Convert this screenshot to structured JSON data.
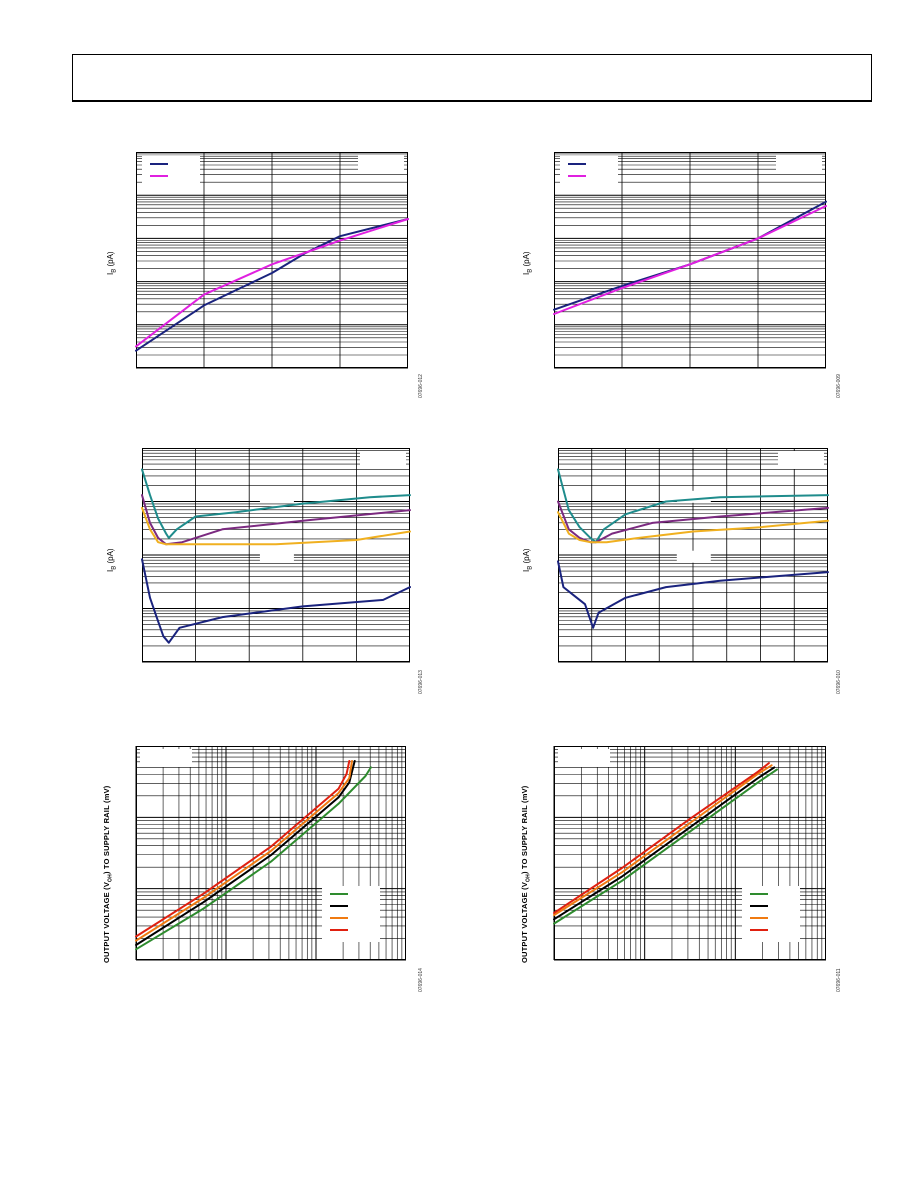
{
  "page": {
    "header": ""
  },
  "charts": [
    {
      "id": "c1",
      "ylabel": "IB (pA)",
      "ylabel_sub": "B",
      "fig_id": "07696-012",
      "log_x": false,
      "x_divs": 4,
      "y_decades": 5,
      "series": [
        {
          "color": "#1a237e",
          "points": [
            [
              0,
              0.08
            ],
            [
              0.25,
              0.29
            ],
            [
              0.5,
              0.44
            ],
            [
              0.62,
              0.53
            ],
            [
              0.75,
              0.61
            ],
            [
              1,
              0.69
            ]
          ]
        },
        {
          "color": "#e020e0",
          "points": [
            [
              0,
              0.1
            ],
            [
              0.25,
              0.34
            ],
            [
              0.5,
              0.48
            ],
            [
              0.75,
              0.59
            ],
            [
              1,
              0.69
            ]
          ]
        }
      ],
      "legend": {
        "corner": "top-left",
        "colors": [
          "#1a237e",
          "#e020e0"
        ]
      },
      "boxes": [
        "top-right"
      ]
    },
    {
      "id": "c2",
      "ylabel": "IB (pA)",
      "ylabel_sub": "B",
      "fig_id": "07696-009",
      "log_x": false,
      "x_divs": 4,
      "y_decades": 5,
      "series": [
        {
          "color": "#1a237e",
          "points": [
            [
              0,
              0.27
            ],
            [
              0.25,
              0.38
            ],
            [
              0.5,
              0.48
            ],
            [
              0.75,
              0.6
            ],
            [
              1,
              0.77
            ]
          ]
        },
        {
          "color": "#e020e0",
          "points": [
            [
              0,
              0.25
            ],
            [
              0.25,
              0.37
            ],
            [
              0.5,
              0.48
            ],
            [
              0.75,
              0.6
            ],
            [
              1,
              0.75
            ]
          ]
        }
      ],
      "legend": {
        "corner": "top-left",
        "colors": [
          "#1a237e",
          "#e020e0"
        ]
      },
      "boxes": [
        "top-right"
      ]
    },
    {
      "id": "c3",
      "ylabel": "IB (pA)",
      "ylabel_sub": "B",
      "fig_id": "07696-013",
      "log_x": false,
      "x_divs": 5,
      "y_decades": 4,
      "series": [
        {
          "color": "#1f8c8c",
          "points": [
            [
              0,
              0.9
            ],
            [
              0.03,
              0.78
            ],
            [
              0.06,
              0.67
            ],
            [
              0.09,
              0.6
            ],
            [
              0.1,
              0.58
            ],
            [
              0.13,
              0.62
            ],
            [
              0.2,
              0.68
            ],
            [
              0.35,
              0.7
            ],
            [
              0.6,
              0.74
            ],
            [
              0.85,
              0.77
            ],
            [
              1,
              0.78
            ]
          ]
        },
        {
          "color": "#7b2a80",
          "points": [
            [
              0,
              0.78
            ],
            [
              0.03,
              0.65
            ],
            [
              0.06,
              0.58
            ],
            [
              0.09,
              0.55
            ],
            [
              0.15,
              0.56
            ],
            [
              0.3,
              0.62
            ],
            [
              0.6,
              0.66
            ],
            [
              1,
              0.71
            ]
          ]
        },
        {
          "color": "#f0b020",
          "points": [
            [
              0,
              0.72
            ],
            [
              0.03,
              0.62
            ],
            [
              0.06,
              0.56
            ],
            [
              0.09,
              0.55
            ],
            [
              0.2,
              0.55
            ],
            [
              0.5,
              0.55
            ],
            [
              0.8,
              0.57
            ],
            [
              1,
              0.61
            ]
          ]
        },
        {
          "color": "#1a237e",
          "points": [
            [
              0,
              0.48
            ],
            [
              0.03,
              0.3
            ],
            [
              0.06,
              0.19
            ],
            [
              0.08,
              0.12
            ],
            [
              0.1,
              0.09
            ],
            [
              0.14,
              0.16
            ],
            [
              0.3,
              0.21
            ],
            [
              0.6,
              0.26
            ],
            [
              0.9,
              0.29
            ],
            [
              1,
              0.35
            ]
          ]
        }
      ],
      "boxes": [
        "top-right",
        "mid1",
        "mid2"
      ]
    },
    {
      "id": "c4",
      "ylabel": "IB (pA)",
      "ylabel_sub": "B",
      "fig_id": "07696-010",
      "log_x": false,
      "x_divs": 8,
      "y_decades": 4,
      "series": [
        {
          "color": "#1f8c8c",
          "points": [
            [
              0,
              0.9
            ],
            [
              0.04,
              0.71
            ],
            [
              0.08,
              0.63
            ],
            [
              0.12,
              0.58
            ],
            [
              0.14,
              0.56
            ],
            [
              0.17,
              0.62
            ],
            [
              0.25,
              0.69
            ],
            [
              0.4,
              0.75
            ],
            [
              0.6,
              0.77
            ],
            [
              1,
              0.78
            ]
          ]
        },
        {
          "color": "#7b2a80",
          "points": [
            [
              0,
              0.75
            ],
            [
              0.04,
              0.62
            ],
            [
              0.08,
              0.58
            ],
            [
              0.12,
              0.56
            ],
            [
              0.14,
              0.56
            ],
            [
              0.2,
              0.6
            ],
            [
              0.35,
              0.65
            ],
            [
              0.6,
              0.68
            ],
            [
              1,
              0.72
            ]
          ]
        },
        {
          "color": "#f0b020",
          "points": [
            [
              0,
              0.7
            ],
            [
              0.04,
              0.6
            ],
            [
              0.08,
              0.57
            ],
            [
              0.12,
              0.56
            ],
            [
              0.18,
              0.56
            ],
            [
              0.3,
              0.58
            ],
            [
              0.5,
              0.61
            ],
            [
              0.75,
              0.63
            ],
            [
              1,
              0.66
            ]
          ]
        },
        {
          "color": "#1a237e",
          "points": [
            [
              0,
              0.47
            ],
            [
              0.02,
              0.35
            ],
            [
              0.06,
              0.31
            ],
            [
              0.1,
              0.27
            ],
            [
              0.13,
              0.16
            ],
            [
              0.15,
              0.23
            ],
            [
              0.25,
              0.3
            ],
            [
              0.4,
              0.35
            ],
            [
              0.6,
              0.38
            ],
            [
              1,
              0.42
            ]
          ]
        }
      ],
      "boxes": [
        "top-right",
        "mid1",
        "mid2"
      ]
    },
    {
      "id": "c5",
      "ylabel": "OUTPUT VOLTAGE (VOH) TO SUPPLY RAIL (mV)",
      "ylabel_sub": "",
      "fig_id": "07696-014",
      "log_x": true,
      "x_decades": 3,
      "y_decades": 3,
      "series": [
        {
          "color": "#2e8b2e",
          "points": [
            [
              0,
              0.05
            ],
            [
              0.25,
              0.24
            ],
            [
              0.5,
              0.46
            ],
            [
              0.75,
              0.73
            ],
            [
              0.85,
              0.86
            ],
            [
              0.87,
              0.9
            ]
          ]
        },
        {
          "color": "#000000",
          "points": [
            [
              0,
              0.07
            ],
            [
              0.25,
              0.27
            ],
            [
              0.5,
              0.49
            ],
            [
              0.75,
              0.76
            ],
            [
              0.79,
              0.83
            ],
            [
              0.81,
              0.93
            ]
          ]
        },
        {
          "color": "#f07a10",
          "points": [
            [
              0,
              0.09
            ],
            [
              0.25,
              0.29
            ],
            [
              0.5,
              0.51
            ],
            [
              0.75,
              0.78
            ],
            [
              0.79,
              0.85
            ],
            [
              0.8,
              0.93
            ]
          ]
        },
        {
          "color": "#e02010",
          "points": [
            [
              0,
              0.11
            ],
            [
              0.25,
              0.31
            ],
            [
              0.5,
              0.53
            ],
            [
              0.75,
              0.8
            ],
            [
              0.78,
              0.87
            ],
            [
              0.79,
              0.93
            ]
          ]
        }
      ],
      "legend": {
        "corner": "bottom-right",
        "colors": [
          "#2e8b2e",
          "#000000",
          "#f07a10",
          "#e02010"
        ]
      },
      "boxes": [
        "top-left"
      ]
    },
    {
      "id": "c6",
      "ylabel": "OUTPUT VOLTAGE (VOH) TO SUPPLY RAIL (mV)",
      "ylabel_sub": "",
      "fig_id": "07696-011",
      "log_x": true,
      "x_decades": 3,
      "y_decades": 3,
      "series": [
        {
          "color": "#2e8b2e",
          "points": [
            [
              0,
              0.17
            ],
            [
              0.25,
              0.37
            ],
            [
              0.5,
              0.6
            ],
            [
              0.75,
              0.83
            ],
            [
              0.82,
              0.89
            ]
          ]
        },
        {
          "color": "#000000",
          "points": [
            [
              0,
              0.19
            ],
            [
              0.25,
              0.39
            ],
            [
              0.5,
              0.62
            ],
            [
              0.75,
              0.85
            ],
            [
              0.81,
              0.9
            ]
          ]
        },
        {
          "color": "#f07a10",
          "points": [
            [
              0,
              0.21
            ],
            [
              0.25,
              0.41
            ],
            [
              0.5,
              0.64
            ],
            [
              0.75,
              0.87
            ],
            [
              0.8,
              0.91
            ]
          ]
        },
        {
          "color": "#e02010",
          "points": [
            [
              0,
              0.22
            ],
            [
              0.25,
              0.43
            ],
            [
              0.5,
              0.66
            ],
            [
              0.75,
              0.88
            ],
            [
              0.79,
              0.92
            ]
          ]
        }
      ],
      "legend": {
        "corner": "bottom-right",
        "colors": [
          "#2e8b2e",
          "#000000",
          "#f07a10",
          "#e02010"
        ]
      },
      "boxes": [
        "top-left"
      ]
    }
  ],
  "chart_data": [
    {
      "type": "line",
      "title": "",
      "ylabel": "IB (pA)",
      "y_scale": "log",
      "series": [
        {
          "color": "#1a237e",
          "values": [
            0.08,
            0.29,
            0.44,
            0.53,
            0.61,
            0.69
          ]
        },
        {
          "color": "#e020e0",
          "values": [
            0.1,
            0.34,
            0.48,
            0.59,
            0.69
          ]
        }
      ]
    },
    {
      "type": "line",
      "title": "",
      "ylabel": "IB (pA)",
      "y_scale": "log",
      "series": [
        {
          "color": "#1a237e",
          "values": [
            0.27,
            0.38,
            0.48,
            0.6,
            0.77
          ]
        },
        {
          "color": "#e020e0",
          "values": [
            0.25,
            0.37,
            0.48,
            0.6,
            0.75
          ]
        }
      ]
    },
    {
      "type": "line",
      "title": "",
      "ylabel": "IB (pA)",
      "y_scale": "log",
      "series_count": 4
    },
    {
      "type": "line",
      "title": "",
      "ylabel": "IB (pA)",
      "y_scale": "log",
      "series_count": 4
    },
    {
      "type": "line",
      "title": "",
      "ylabel": "OUTPUT VOLTAGE (VOH) TO SUPPLY RAIL (mV)",
      "x_scale": "log",
      "y_scale": "log",
      "series_count": 4
    },
    {
      "type": "line",
      "title": "",
      "ylabel": "OUTPUT VOLTAGE (VOH) TO SUPPLY RAIL (mV)",
      "x_scale": "log",
      "y_scale": "log",
      "series_count": 4
    }
  ]
}
